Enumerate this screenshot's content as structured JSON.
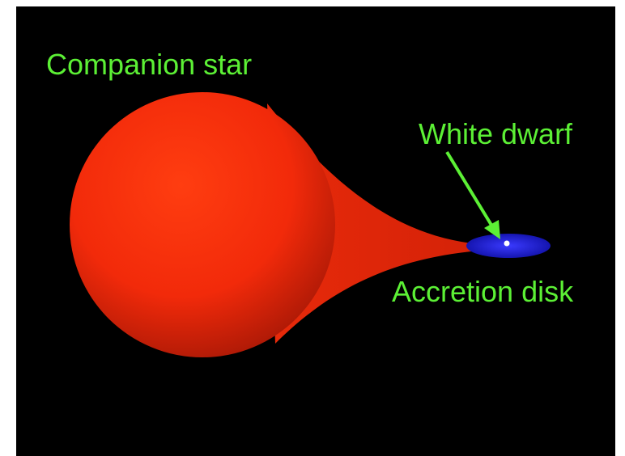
{
  "nodes": [
    {
      "label": "Companion star"
    },
    {
      "label": "White dwarf"
    },
    {
      "label": "Accretion disk"
    }
  ]
}
